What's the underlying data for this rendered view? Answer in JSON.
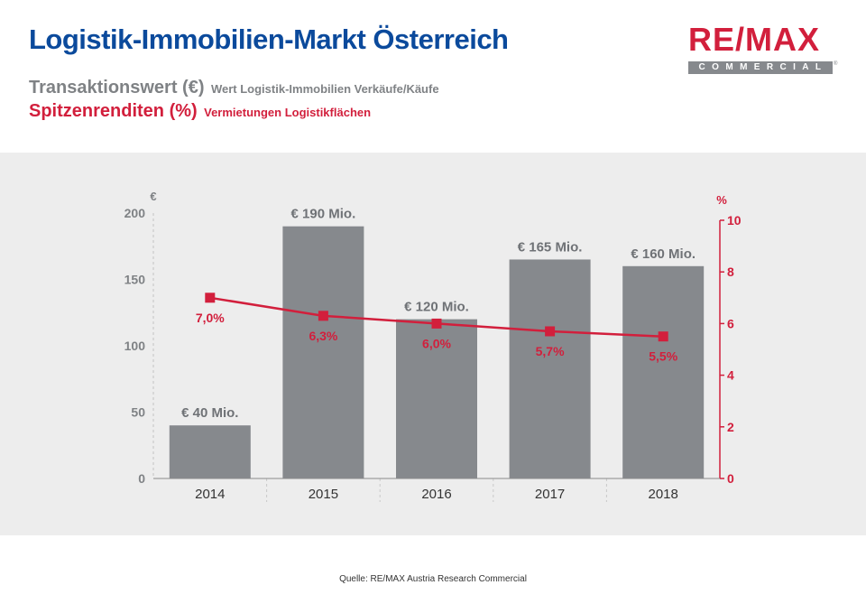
{
  "header": {
    "title": "Logistik-Immobilien-Markt Österreich",
    "subtitle_transactions_main": "Transaktionswert (€)",
    "subtitle_transactions_desc": "Wert Logistik-Immobilien Verkäufe/Käufe",
    "subtitle_yields_main": "Spitzenrenditen (%)",
    "subtitle_yields_desc": "Vermietungen Logistikflächen"
  },
  "logo": {
    "wordmark": "RE/MAX",
    "sub": "COMMERCIAL",
    "reg": "®"
  },
  "source": "Quelle: RE/MAX Austria Research Commercial",
  "colors": {
    "title_blue": "#0b4a9c",
    "brand_red": "#d21f3c",
    "bar_gray": "#86898d",
    "axis_gray": "#7f8285",
    "chart_bg": "#ededed",
    "logo_bar": "#86898d"
  },
  "chart_data": {
    "type": "bar",
    "categories": [
      "2014",
      "2015",
      "2016",
      "2017",
      "2018"
    ],
    "series": [
      {
        "name": "Transaktionswert (€)",
        "type": "bar",
        "axis": "left",
        "values": [
          40,
          190,
          120,
          165,
          160
        ],
        "labels": [
          "€ 40 Mio.",
          "€ 190 Mio.",
          "€ 120 Mio.",
          "€ 165 Mio.",
          "€ 160 Mio."
        ]
      },
      {
        "name": "Spitzenrenditen (%)",
        "type": "line",
        "axis": "right",
        "values": [
          7.0,
          6.3,
          6.0,
          5.7,
          5.5
        ],
        "labels": [
          "7,0%",
          "6,3%",
          "6,0%",
          "5,7%",
          "5,5%"
        ]
      }
    ],
    "y_left": {
      "unit": "€",
      "min": 0,
      "max": 200,
      "ticks": [
        "0",
        "50",
        "100",
        "150",
        "200"
      ]
    },
    "y_right": {
      "unit": "%",
      "min": 0,
      "max": 10,
      "ticks": [
        "0",
        "2",
        "4",
        "6",
        "8",
        "10"
      ]
    },
    "grid": false
  }
}
